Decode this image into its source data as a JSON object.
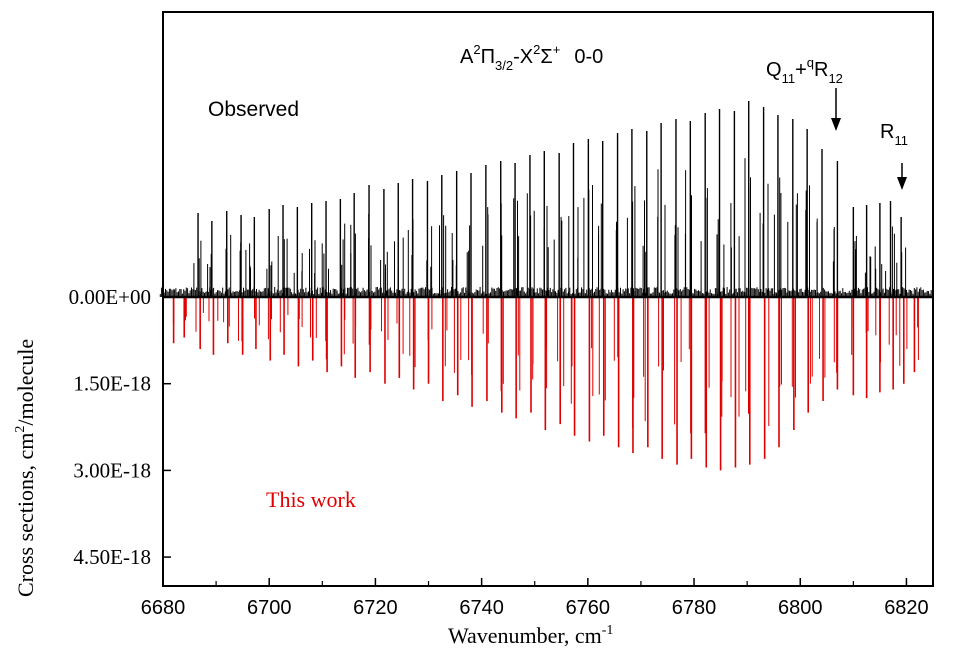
{
  "chart_data": {
    "type": "bar",
    "title": "A²Π₃/₂-X²Σ⁺ 0-0",
    "title_parts": {
      "A": "A",
      "sup1": "2",
      "Pi": "Π",
      "sub1": "3/2",
      "dash": "-",
      "X": "X",
      "sup2": "2",
      "Sigma": "Σ",
      "sup3": "+",
      "band": "0-0"
    },
    "xlabel": "Wavenumber, cm",
    "xlabel_sup": "-1",
    "ylabel": "Cross sections, cm",
    "ylabel_sup": "2",
    "ylabel_tail": "/molecule",
    "xlim": [
      6680,
      6825
    ],
    "ylim_calculated": [
      0,
      5e-18
    ],
    "y_inverted": true,
    "x_ticks": [
      "6680",
      "6700",
      "6720",
      "6740",
      "6760",
      "6780",
      "6800",
      "6820"
    ],
    "y_ticks": [
      {
        "value": 0,
        "label": "0.00E+00"
      },
      {
        "value": 1.5e-18,
        "label": "1.50E-18"
      },
      {
        "value": 3e-18,
        "label": "3.00E-18"
      },
      {
        "value": 4.5e-18,
        "label": "4.50E-18"
      }
    ],
    "annotations": {
      "observed": "Observed",
      "this_work": "This work",
      "branch1": {
        "base": "Q",
        "sub": "11",
        "plus": "+",
        "sup": "q",
        "base2": "R",
        "sub2": "12",
        "x": 6807
      },
      "branch2": {
        "base": "R",
        "sub": "11",
        "x": 6819
      }
    },
    "series": [
      {
        "name": "Observed",
        "color": "#000000",
        "x": [
          6686.6,
          6689.2,
          6692.0,
          6694.7,
          6697.2,
          6700.0,
          6702.6,
          6705.3,
          6708.0,
          6710.7,
          6713.4,
          6716.0,
          6718.8,
          6721.6,
          6724.3,
          6727.0,
          6729.8,
          6732.5,
          6735.3,
          6738.0,
          6740.8,
          6743.6,
          6746.3,
          6749.1,
          6751.8,
          6754.6,
          6757.3,
          6760.1,
          6762.8,
          6765.6,
          6768.3,
          6771.1,
          6773.8,
          6776.6,
          6779.3,
          6782.1,
          6784.8,
          6787.6,
          6790.3,
          6793.1,
          6795.8,
          6798.6,
          6801.3,
          6804.1,
          6807.0,
          6810.0,
          6812.5,
          6815.0,
          6817.0,
          6819.0
        ],
        "y_rel": [
          0.42,
          0.38,
          0.43,
          0.41,
          0.4,
          0.44,
          0.46,
          0.45,
          0.47,
          0.48,
          0.49,
          0.52,
          0.56,
          0.54,
          0.57,
          0.59,
          0.58,
          0.61,
          0.63,
          0.62,
          0.66,
          0.68,
          0.67,
          0.71,
          0.73,
          0.72,
          0.77,
          0.79,
          0.78,
          0.82,
          0.84,
          0.83,
          0.87,
          0.89,
          0.88,
          0.92,
          0.94,
          0.93,
          0.98,
          0.95,
          0.91,
          0.89,
          0.84,
          0.74,
          0.68,
          0.45,
          0.46,
          0.47,
          0.48,
          0.4
        ]
      },
      {
        "name": "This work",
        "color": "#e00000",
        "x": [
          6682.0,
          6684.0,
          6687.0,
          6689.5,
          6692.2,
          6695.0,
          6697.5,
          6700.2,
          6702.8,
          6705.5,
          6708.2,
          6710.9,
          6713.6,
          6716.2,
          6719.0,
          6721.8,
          6724.5,
          6727.2,
          6730.0,
          6732.7,
          6735.5,
          6738.2,
          6741.0,
          6743.8,
          6746.5,
          6749.3,
          6752.0,
          6754.8,
          6757.5,
          6760.3,
          6763.0,
          6765.8,
          6768.5,
          6771.3,
          6774.0,
          6776.8,
          6779.5,
          6782.3,
          6785.0,
          6787.8,
          6790.5,
          6793.3,
          6796.0,
          6798.8,
          6801.5,
          6804.3,
          6807.0,
          6810.0,
          6812.5,
          6815.0,
          6817.5,
          6819.5,
          6821.5
        ],
        "values": [
          8e-19,
          7e-19,
          9e-19,
          1e-18,
          8e-19,
          1e-18,
          9e-19,
          1.1e-18,
          1e-18,
          1.2e-18,
          1.1e-18,
          1.3e-18,
          1.2e-18,
          1.4e-18,
          1.3e-18,
          1.5e-18,
          1.4e-18,
          1.6e-18,
          1.5e-18,
          1.8e-18,
          1.7e-18,
          1.9e-18,
          1.8e-18,
          2e-18,
          2.1e-18,
          2e-18,
          2.3e-18,
          2.2e-18,
          2.4e-18,
          2.5e-18,
          2.4e-18,
          2.6e-18,
          2.7e-18,
          2.6e-18,
          2.8e-18,
          2.9e-18,
          2.8e-18,
          2.95e-18,
          3e-18,
          2.95e-18,
          2.9e-18,
          2.8e-18,
          2.6e-18,
          2.3e-18,
          2e-18,
          1.8e-18,
          1.6e-18,
          1.7e-18,
          1.75e-18,
          1.65e-18,
          1.6e-18,
          1.5e-18,
          1.3e-18
        ]
      }
    ],
    "grid": false,
    "legend": "none"
  }
}
